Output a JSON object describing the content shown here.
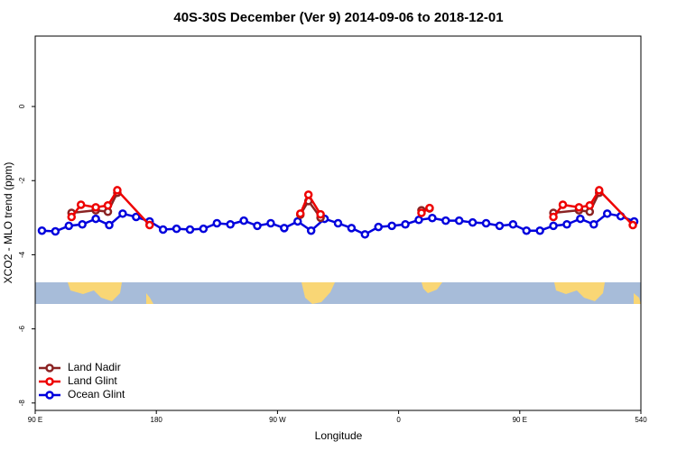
{
  "chart_data": {
    "type": "line",
    "title": "40S-30S December (Ver 9)   2014-09-06 to 2018-12-01",
    "x_label": "Longitude",
    "y_label": "XCO2 - MLO trend (ppm)",
    "xlim": [
      90,
      540
    ],
    "xticks": [
      {
        "value": 90,
        "label": "90 E"
      },
      180,
      {
        "value": 270,
        "label": "90 W"
      },
      {
        "value": 360,
        "label": "0"
      },
      {
        "value": 450,
        "label": "90 E"
      },
      540
    ],
    "ylim": [
      -8.2,
      1.9
    ],
    "yticks": [
      -8,
      -6,
      -4,
      -2,
      0
    ],
    "legend": "bottom-left",
    "series": [
      {
        "name": "Land Nadir",
        "color": "#8b2323",
        "x": [
          117,
          135,
          144,
          151,
          200,
          287,
          293,
          302,
          340,
          377,
          383,
          420,
          475,
          494,
          502,
          509
        ],
        "values": [
          -2.87,
          -2.8,
          -2.84,
          -2.33,
          null,
          -2.92,
          -2.55,
          -3.0,
          null,
          -2.8,
          -2.75,
          null,
          -2.87,
          -2.8,
          -2.84,
          -2.33
        ]
      },
      {
        "name": "Land Glint",
        "color": "#ee0000",
        "x": [
          117,
          124,
          135,
          144,
          151,
          175,
          230,
          287,
          293,
          302,
          340,
          377,
          383,
          420,
          475,
          482,
          494,
          502,
          509,
          534
        ],
        "values": [
          -2.98,
          -2.65,
          -2.72,
          -2.67,
          -2.26,
          -3.2,
          null,
          -2.89,
          -2.38,
          -2.91,
          null,
          -2.87,
          -2.74,
          null,
          -2.98,
          -2.65,
          -2.72,
          -2.67,
          -2.26,
          -3.2
        ]
      },
      {
        "name": "Ocean Glint",
        "color": "#0000dd",
        "x": [
          95,
          105,
          115,
          125,
          135,
          145,
          155,
          165,
          175,
          185,
          195,
          205,
          215,
          225,
          235,
          245,
          255,
          265,
          275,
          285,
          295,
          305,
          315,
          325,
          335,
          345,
          355,
          365,
          375,
          385,
          395,
          405,
          415,
          425,
          435,
          445,
          455,
          465,
          475,
          485,
          495,
          505,
          515,
          525,
          535
        ],
        "values": [
          -3.35,
          -3.37,
          -3.22,
          -3.18,
          -3.03,
          -3.2,
          -2.89,
          -2.98,
          -3.1,
          -3.32,
          -3.3,
          -3.32,
          -3.3,
          -3.15,
          -3.18,
          -3.08,
          -3.22,
          -3.15,
          -3.28,
          -3.1,
          -3.35,
          -3.03,
          -3.15,
          -3.28,
          -3.45,
          -3.25,
          -3.22,
          -3.18,
          -3.06,
          -3.01,
          -3.08,
          -3.08,
          -3.13,
          -3.15,
          -3.22,
          -3.18,
          -3.35,
          -3.35,
          -3.22,
          -3.18,
          -3.03,
          -3.18,
          -2.89,
          -2.96,
          -3.1
        ]
      }
    ]
  }
}
